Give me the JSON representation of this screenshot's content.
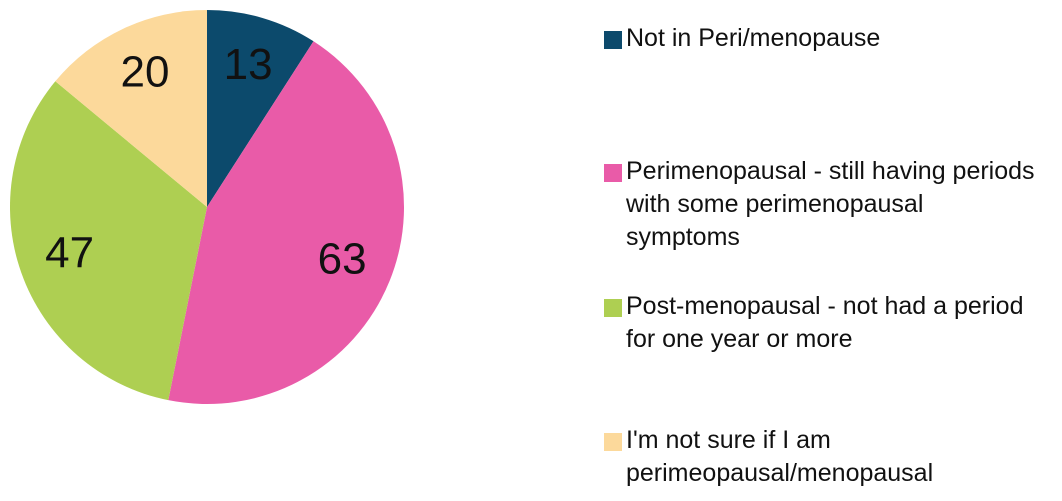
{
  "chart_data": {
    "type": "pie",
    "categories": [
      "Not in Peri/menopause",
      "Perimenopausal - still having periods with some perimenopausal symptoms",
      "Post-menopausal - not had a period for one year or more",
      "I'm not sure if I am perimeopausal/menopausal"
    ],
    "values": [
      13,
      63,
      47,
      20
    ],
    "colors": [
      "#0c4a6c",
      "#e95ba8",
      "#aecf52",
      "#fcd99b"
    ]
  }
}
